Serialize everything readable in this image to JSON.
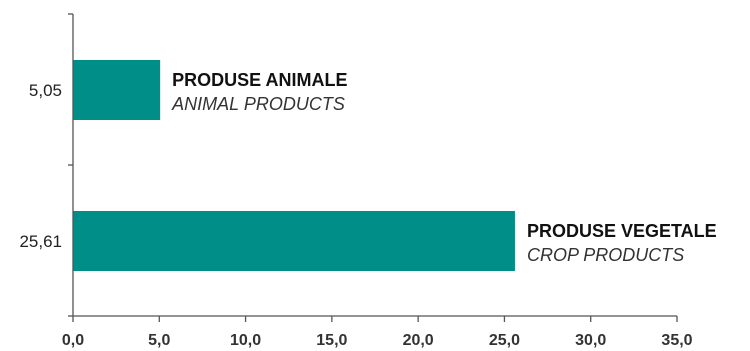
{
  "chart_data": {
    "type": "bar",
    "orientation": "horizontal",
    "categories": [
      {
        "label_ro": "PRODUSE ANIMALE",
        "label_en": "ANIMAL PRODUCTS",
        "value": 5.05,
        "value_label": "5,05"
      },
      {
        "label_ro": "PRODUSE VEGETALE",
        "label_en": "CROP PRODUCTS",
        "value": 25.61,
        "value_label": "25,61"
      }
    ],
    "xlim": [
      0,
      35
    ],
    "xticks": [
      "0,0",
      "5,0",
      "10,0",
      "15,0",
      "20,0",
      "25,0",
      "30,0",
      "35,0"
    ],
    "bar_color": "#008f88",
    "grid": false,
    "legend": "none"
  }
}
